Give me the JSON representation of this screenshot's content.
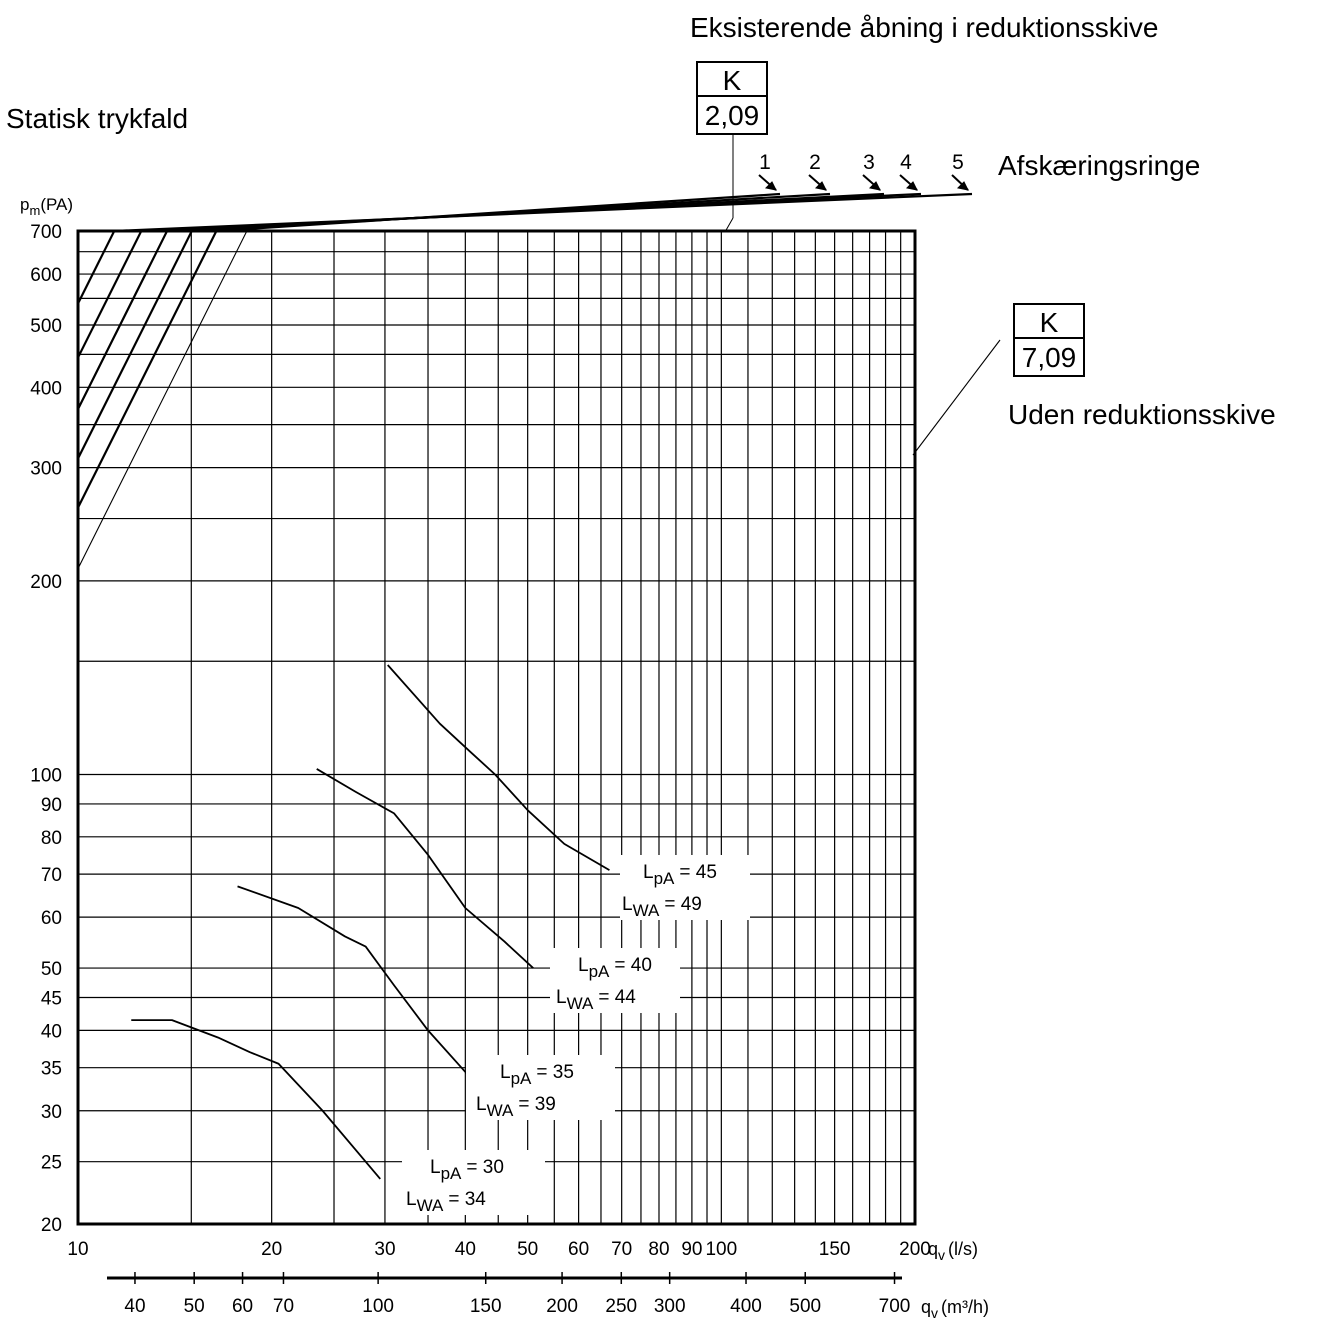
{
  "title_left": "Statisk trykfald",
  "header_existing": "Eksisterende åbning i reduktionsskive",
  "header_rings": "Afskæringsringe",
  "header_without": "Uden reduktionsskive",
  "k_box_1": {
    "label": "K",
    "value": "2,09"
  },
  "k_box_2": {
    "label": "K",
    "value": "7,09"
  },
  "ring_numbers": [
    "1",
    "2",
    "3",
    "4",
    "5"
  ],
  "noise_labels": [
    {
      "lpa_base": "L",
      "lpa_sub": "pA",
      "lpa_val": "= 45",
      "lwa_base": "L",
      "lwa_sub": "WA",
      "lwa_val": "= 49"
    },
    {
      "lpa_base": "L",
      "lpa_sub": "pA",
      "lpa_val": "= 40",
      "lwa_base": "L",
      "lwa_sub": "WA",
      "lwa_val": "= 44"
    },
    {
      "lpa_base": "L",
      "lpa_sub": "pA",
      "lpa_val": "= 35",
      "lwa_base": "L",
      "lwa_sub": "WA",
      "lwa_val": "= 39"
    },
    {
      "lpa_base": "L",
      "lpa_sub": "pA",
      "lpa_val": "= 30",
      "lwa_base": "L",
      "lwa_sub": "WA",
      "lwa_val": "= 34"
    }
  ],
  "chart_data": {
    "type": "line",
    "x_scale": "log",
    "y_scale": "log",
    "xlim": [
      10,
      200
    ],
    "ylim": [
      20,
      700
    ],
    "ylabel_base": "p",
    "ylabel_sub": "m",
    "ylabel_unit": "(PA)",
    "xlabel_base": "q",
    "xlabel_sub": "v",
    "xlabel_unit": "(l/s)",
    "x2label_base": "q",
    "x2label_sub": "v",
    "x2label_unit": "(m³/h)",
    "y_ticks": [
      20,
      25,
      30,
      35,
      40,
      45,
      50,
      60,
      70,
      80,
      90,
      100,
      200,
      300,
      400,
      500,
      600,
      700
    ],
    "y_minor_grid": [
      150,
      250,
      350,
      450,
      550,
      650
    ],
    "x_ticks": [
      10,
      20,
      30,
      40,
      50,
      60,
      70,
      80,
      90,
      100,
      150,
      200
    ],
    "x_minor_grid": [
      15,
      25,
      35,
      45,
      55,
      65,
      75,
      85,
      95,
      110,
      120,
      130,
      140,
      160,
      170,
      180,
      190
    ],
    "x2_ticks": [
      40,
      50,
      60,
      70,
      100,
      150,
      200,
      250,
      300,
      400,
      500,
      700
    ],
    "x2_range": [
      36,
      720
    ],
    "series": [
      {
        "name": "K 2,09",
        "style": "thin",
        "label": "K=2,09",
        "k": 2.09
      },
      {
        "name": "1",
        "style": "thick",
        "k": 2.6
      },
      {
        "name": "2",
        "style": "thick",
        "k": 3.1
      },
      {
        "name": "3",
        "style": "thick",
        "k": 3.7
      },
      {
        "name": "4",
        "style": "thick",
        "k": 4.45
      },
      {
        "name": "5",
        "style": "thick",
        "k": 5.4
      },
      {
        "name": "K 7,09",
        "style": "thin",
        "label": "K=7,09",
        "k": 7.09
      }
    ],
    "noise_curves": [
      {
        "name": "LpA 45 / LWA 49",
        "points": [
          [
            30.3,
            148
          ],
          [
            36.5,
            120
          ],
          [
            40.5,
            109
          ],
          [
            44.5,
            100
          ],
          [
            50,
            88
          ],
          [
            57,
            78
          ],
          [
            67,
            71
          ]
        ]
      },
      {
        "name": "LpA 40 / LWA 44",
        "points": [
          [
            23.5,
            102
          ],
          [
            27,
            94
          ],
          [
            31,
            87
          ],
          [
            35,
            75
          ],
          [
            40,
            62
          ],
          [
            46,
            55
          ],
          [
            51,
            50
          ]
        ]
      },
      {
        "name": "LpA 35 / LWA 39",
        "points": [
          [
            17.7,
            67
          ],
          [
            22,
            62
          ],
          [
            26,
            56
          ],
          [
            28,
            54
          ],
          [
            31,
            47
          ],
          [
            35,
            40
          ],
          [
            40.5,
            34
          ]
        ]
      },
      {
        "name": "LpA 30 / LWA 34",
        "points": [
          [
            12.1,
            41.5
          ],
          [
            14,
            41.5
          ],
          [
            16.5,
            39
          ],
          [
            18.5,
            37
          ],
          [
            20.5,
            35.5
          ],
          [
            24,
            30
          ],
          [
            29.5,
            23.5
          ]
        ]
      }
    ]
  }
}
